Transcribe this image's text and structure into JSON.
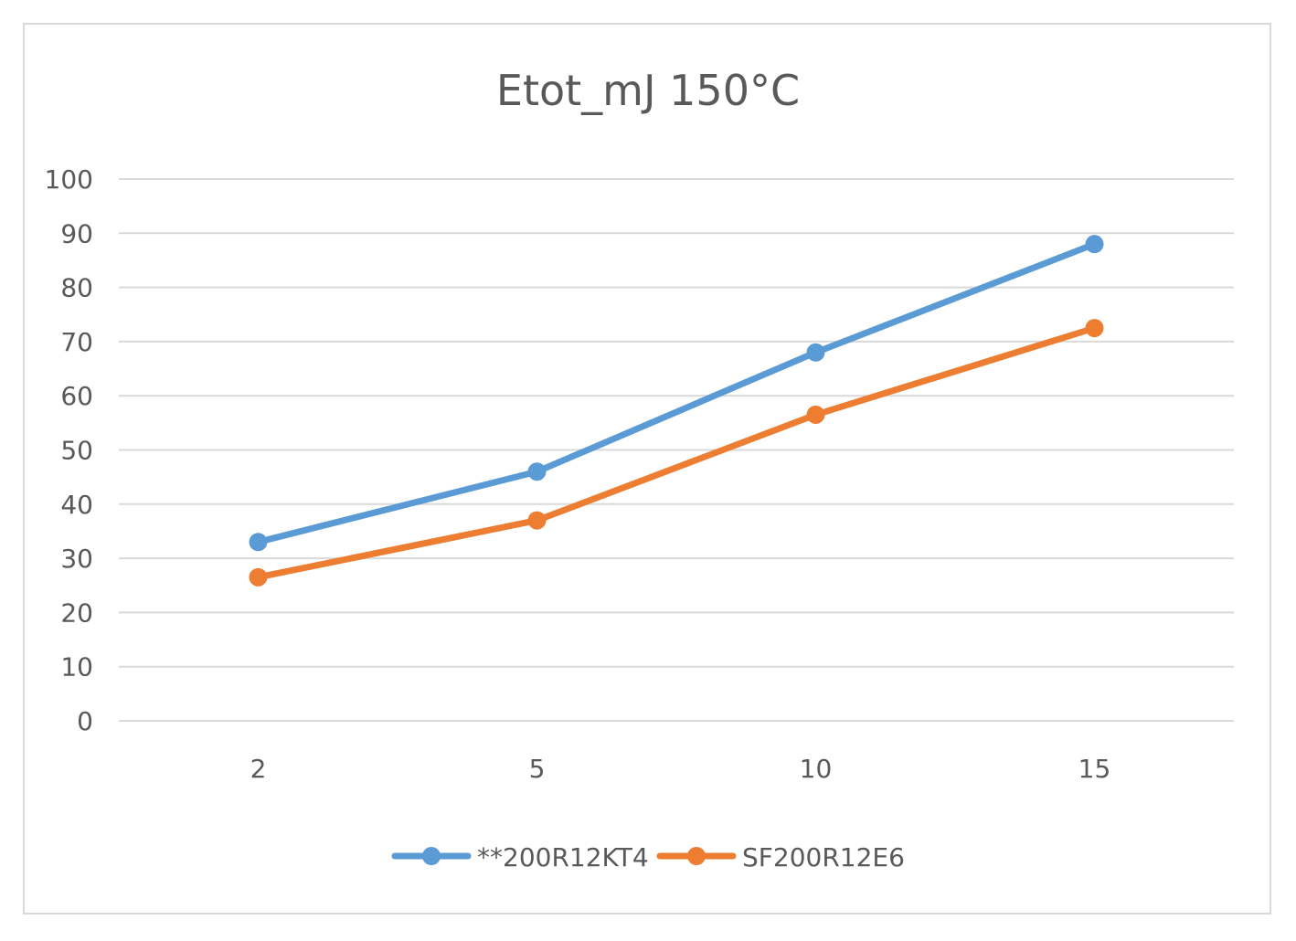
{
  "chart_data": {
    "type": "line",
    "title": "Etot_mJ  150°C",
    "xlabel": "",
    "ylabel": "",
    "categories": [
      "2",
      "5",
      "10",
      "15"
    ],
    "ylim": [
      0,
      100
    ],
    "y_ticks": [
      "0",
      "10",
      "20",
      "30",
      "40",
      "50",
      "60",
      "70",
      "80",
      "90",
      "100"
    ],
    "grid": true,
    "legend_position": "bottom",
    "series": [
      {
        "name": "**200R12KT4",
        "values": [
          33,
          46,
          68,
          88
        ],
        "color": "#5b9bd5"
      },
      {
        "name": "SF200R12E6",
        "values": [
          26.5,
          37,
          56.5,
          72.5
        ],
        "color": "#ed7d31"
      }
    ]
  }
}
